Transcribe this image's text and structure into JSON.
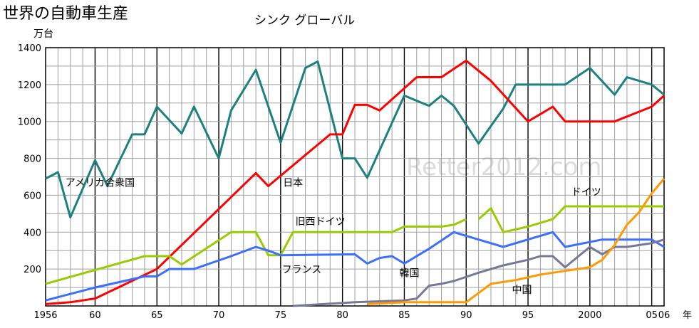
{
  "chart_data": {
    "type": "line",
    "title": "世界の自動車生産",
    "subtitle": "シンク グローバル",
    "y_unit": "万台",
    "x_unit": "年",
    "watermark": "Retter2012.com",
    "ylim": [
      0,
      1400
    ],
    "xlim": [
      1956,
      2006
    ],
    "grid": true,
    "y_ticks": [
      {
        "value": 1400,
        "label": "1400"
      },
      {
        "value": 1200,
        "label": "1200"
      },
      {
        "value": 1000,
        "label": "1000"
      },
      {
        "value": 800,
        "label": "800"
      },
      {
        "value": 600,
        "label": "600"
      },
      {
        "value": 400,
        "label": "400"
      },
      {
        "value": 200,
        "label": "200"
      }
    ],
    "x_ticks": [
      {
        "value": 1956,
        "label": "1956"
      },
      {
        "value": 1960,
        "label": "60"
      },
      {
        "value": 1965,
        "label": "65"
      },
      {
        "value": 1970,
        "label": "70"
      },
      {
        "value": 1975,
        "label": "75"
      },
      {
        "value": 1980,
        "label": "80"
      },
      {
        "value": 1985,
        "label": "85"
      },
      {
        "value": 1990,
        "label": "90"
      },
      {
        "value": 1995,
        "label": "95"
      },
      {
        "value": 2000,
        "label": "2000"
      },
      {
        "value": 2005,
        "label": "05"
      },
      {
        "value": 2006,
        "label": "06"
      }
    ],
    "series": [
      {
        "name": "アメリカ合衆国",
        "color": "#1a8080",
        "points": [
          [
            1956,
            690
          ],
          [
            1957,
            725
          ],
          [
            1958,
            480
          ],
          [
            1960,
            790
          ],
          [
            1961,
            650
          ],
          [
            1963,
            930
          ],
          [
            1964,
            930
          ],
          [
            1965,
            1080
          ],
          [
            1967,
            935
          ],
          [
            1968,
            1080
          ],
          [
            1970,
            800
          ],
          [
            1971,
            1060
          ],
          [
            1973,
            1280
          ],
          [
            1975,
            885
          ],
          [
            1977,
            1290
          ],
          [
            1978,
            1325
          ],
          [
            1980,
            800
          ],
          [
            1981,
            800
          ],
          [
            1982,
            695
          ],
          [
            1985,
            1140
          ],
          [
            1987,
            1085
          ],
          [
            1988,
            1140
          ],
          [
            1989,
            1085
          ],
          [
            1991,
            880
          ],
          [
            1993,
            1070
          ],
          [
            1994,
            1200
          ],
          [
            1998,
            1200
          ],
          [
            2000,
            1290
          ],
          [
            2002,
            1145
          ],
          [
            2003,
            1240
          ],
          [
            2005,
            1200
          ],
          [
            2006,
            1145
          ]
        ],
        "label_x": 1957.6,
        "label_y": 650
      },
      {
        "name": "日本",
        "color": "#ff0000",
        "points": [
          [
            1956,
            10
          ],
          [
            1958,
            20
          ],
          [
            1960,
            40
          ],
          [
            1965,
            200
          ],
          [
            1973,
            720
          ],
          [
            1974,
            650
          ],
          [
            1979,
            930
          ],
          [
            1980,
            930
          ],
          [
            1981,
            1090
          ],
          [
            1982,
            1090
          ],
          [
            1983,
            1060
          ],
          [
            1986,
            1240
          ],
          [
            1988,
            1240
          ],
          [
            1990,
            1330
          ],
          [
            1992,
            1220
          ],
          [
            1995,
            1000
          ],
          [
            1997,
            1080
          ],
          [
            1998,
            1000
          ],
          [
            2002,
            1000
          ],
          [
            2005,
            1080
          ],
          [
            2006,
            1140
          ]
        ],
        "label_x": 1975.2,
        "label_y": 650
      },
      {
        "name": "旧西ドイツ",
        "color": "#99cc00",
        "points": [
          [
            1956,
            120
          ],
          [
            1964,
            270
          ],
          [
            1966,
            270
          ],
          [
            1967,
            225
          ],
          [
            1971,
            400
          ],
          [
            1973,
            400
          ],
          [
            1974,
            275
          ],
          [
            1975,
            275
          ],
          [
            1976,
            400
          ],
          [
            1984,
            400
          ],
          [
            1985,
            430
          ],
          [
            1988,
            430
          ],
          [
            1989,
            440
          ],
          [
            1990,
            470
          ]
        ],
        "label_x": 1976.2,
        "label_y": 440
      },
      {
        "name": "ドイツ",
        "color": "#99cc00",
        "points": [
          [
            1991,
            470
          ],
          [
            1992,
            530
          ],
          [
            1993,
            400
          ],
          [
            1995,
            430
          ],
          [
            1997,
            470
          ],
          [
            1998,
            540
          ],
          [
            2006,
            540
          ]
        ],
        "label_x": 1998.5,
        "label_y": 600
      },
      {
        "name": "フランス",
        "color": "#3d6fff",
        "points": [
          [
            1956,
            30
          ],
          [
            1960,
            100
          ],
          [
            1964,
            160
          ],
          [
            1965,
            160
          ],
          [
            1966,
            200
          ],
          [
            1968,
            200
          ],
          [
            1971,
            270
          ],
          [
            1973,
            320
          ],
          [
            1974,
            300
          ],
          [
            1975,
            275
          ],
          [
            1981,
            280
          ],
          [
            1982,
            230
          ],
          [
            1983,
            260
          ],
          [
            1984,
            270
          ],
          [
            1985,
            230
          ],
          [
            1987,
            310
          ],
          [
            1989,
            400
          ],
          [
            1991,
            360
          ],
          [
            1993,
            320
          ],
          [
            1997,
            400
          ],
          [
            1998,
            320
          ],
          [
            2001,
            360
          ],
          [
            2005,
            360
          ],
          [
            2006,
            320
          ]
        ],
        "label_x": 1975.1,
        "label_y": 180
      },
      {
        "name": "韓国",
        "color": "#777799",
        "points": [
          [
            1976,
            0
          ],
          [
            1981,
            20
          ],
          [
            1983,
            25
          ],
          [
            1985,
            30
          ],
          [
            1986,
            40
          ],
          [
            1987,
            110
          ],
          [
            1988,
            120
          ],
          [
            1989,
            135
          ],
          [
            1991,
            180
          ],
          [
            1993,
            220
          ],
          [
            1995,
            250
          ],
          [
            1996,
            270
          ],
          [
            1997,
            270
          ],
          [
            1998,
            210
          ],
          [
            2000,
            320
          ],
          [
            2001,
            280
          ],
          [
            2002,
            320
          ],
          [
            2003,
            320
          ],
          [
            2004,
            330
          ],
          [
            2005,
            340
          ],
          [
            2006,
            360
          ]
        ],
        "label_x": 1984.6,
        "label_y": 160
      },
      {
        "name": "中国",
        "color": "#ff9900",
        "points": [
          [
            1982,
            10
          ],
          [
            1985,
            20
          ],
          [
            1990,
            20
          ],
          [
            1992,
            120
          ],
          [
            1994,
            140
          ],
          [
            1996,
            170
          ],
          [
            1998,
            190
          ],
          [
            2000,
            210
          ],
          [
            2001,
            250
          ],
          [
            2002,
            330
          ],
          [
            2003,
            440
          ],
          [
            2004,
            510
          ],
          [
            2005,
            610
          ],
          [
            2006,
            690
          ]
        ],
        "label_x": 1993.7,
        "label_y": 70
      }
    ]
  }
}
